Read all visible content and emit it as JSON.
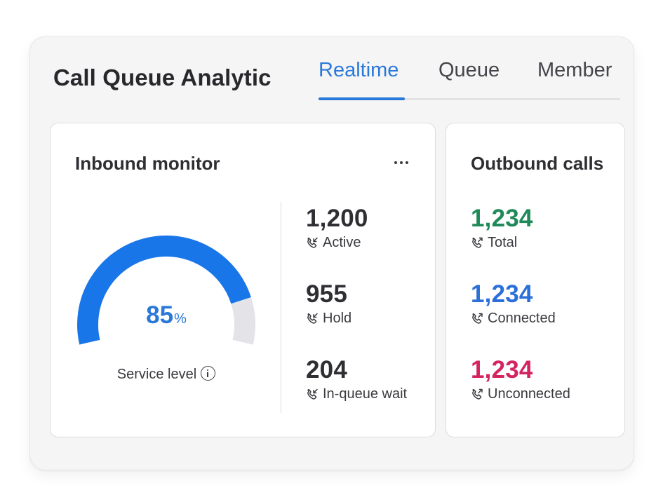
{
  "app": {
    "title": "Call Queue Analytic"
  },
  "tabs": [
    {
      "label": "Realtime",
      "active": true
    },
    {
      "label": "Queue",
      "active": false
    },
    {
      "label": "Member",
      "active": false
    }
  ],
  "inbound": {
    "title": "Inbound monitor",
    "more_icon": "more-horizontal-icon",
    "service_level": {
      "value": "85",
      "unit": "%",
      "fraction": 0.85,
      "label": "Service level",
      "info_icon": "info-icon"
    },
    "metrics": [
      {
        "value": "1,200",
        "label": "Active",
        "icon": "phone-incoming-icon"
      },
      {
        "value": "955",
        "label": "Hold",
        "icon": "phone-incoming-icon"
      },
      {
        "value": "204",
        "label": "In-queue wait",
        "icon": "phone-incoming-icon"
      }
    ]
  },
  "outbound": {
    "title": "Outbound calls",
    "metrics": [
      {
        "value": "1,234",
        "label": "Total",
        "color": "#1f8a57",
        "icon": "phone-outgoing-icon"
      },
      {
        "value": "1,234",
        "label": "Connected",
        "color": "#2b6fd9",
        "icon": "phone-outgoing-icon"
      },
      {
        "value": "1,234",
        "label": "Unconnected",
        "color": "#d42360",
        "icon": "phone-outgoing-icon"
      }
    ]
  },
  "colors": {
    "accent": "#2a78d8",
    "gauge_fill": "#1976e8",
    "gauge_track": "#e4e4e8"
  }
}
